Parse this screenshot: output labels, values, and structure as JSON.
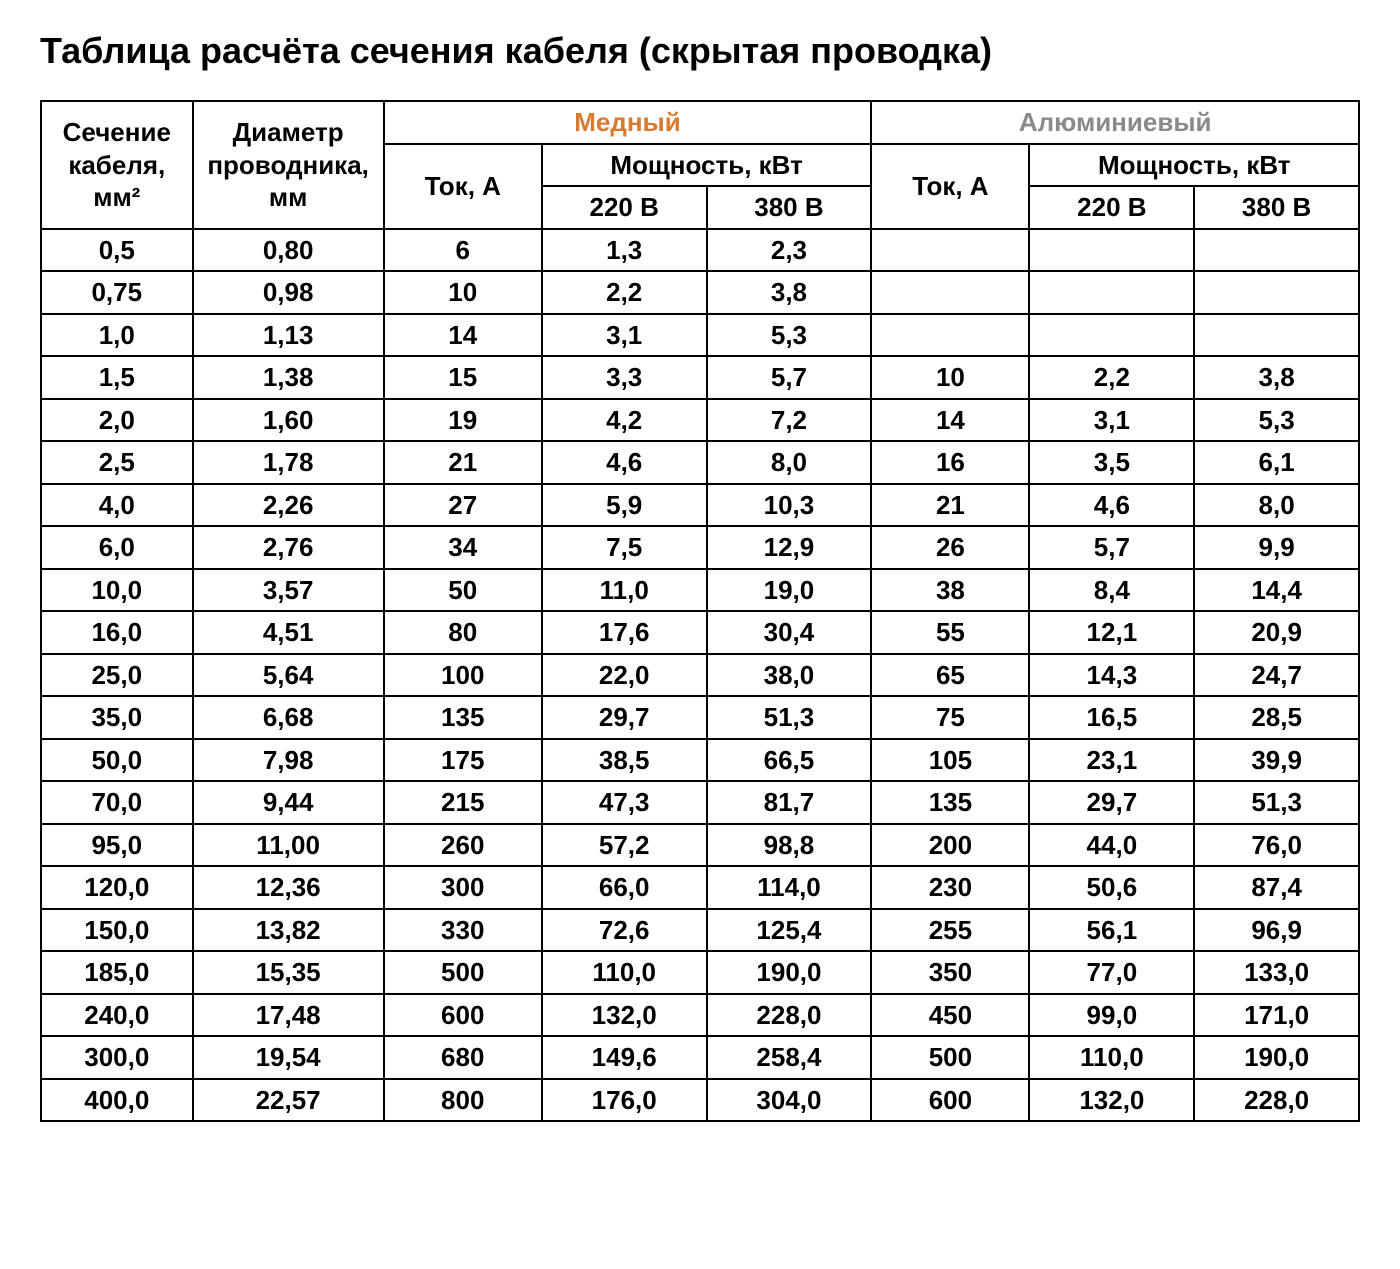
{
  "title": "Таблица расчёта сечения кабеля (скрытая проводка)",
  "headers": {
    "section": "Сечение кабеля, мм²",
    "diameter": "Диаметр проводника, мм",
    "copper": "Медный",
    "aluminum": "Алюминиевый",
    "current": "Ток, А",
    "power": "Мощность, кВт",
    "v220": "220 В",
    "v380": "380 В"
  },
  "colors": {
    "copper": "#d97b2e",
    "aluminum": "#8a8a8a",
    "text": "#000000",
    "border": "#000000",
    "background": "#ffffff"
  },
  "fontsize": {
    "title": 36,
    "header": 26,
    "cell": 26
  },
  "columns": [
    "section",
    "diameter",
    "cu_current",
    "cu_220",
    "cu_380",
    "al_current",
    "al_220",
    "al_380"
  ],
  "rows": [
    [
      "0,5",
      "0,80",
      "6",
      "1,3",
      "2,3",
      "",
      "",
      ""
    ],
    [
      "0,75",
      "0,98",
      "10",
      "2,2",
      "3,8",
      "",
      "",
      ""
    ],
    [
      "1,0",
      "1,13",
      "14",
      "3,1",
      "5,3",
      "",
      "",
      ""
    ],
    [
      "1,5",
      "1,38",
      "15",
      "3,3",
      "5,7",
      "10",
      "2,2",
      "3,8"
    ],
    [
      "2,0",
      "1,60",
      "19",
      "4,2",
      "7,2",
      "14",
      "3,1",
      "5,3"
    ],
    [
      "2,5",
      "1,78",
      "21",
      "4,6",
      "8,0",
      "16",
      "3,5",
      "6,1"
    ],
    [
      "4,0",
      "2,26",
      "27",
      "5,9",
      "10,3",
      "21",
      "4,6",
      "8,0"
    ],
    [
      "6,0",
      "2,76",
      "34",
      "7,5",
      "12,9",
      "26",
      "5,7",
      "9,9"
    ],
    [
      "10,0",
      "3,57",
      "50",
      "11,0",
      "19,0",
      "38",
      "8,4",
      "14,4"
    ],
    [
      "16,0",
      "4,51",
      "80",
      "17,6",
      "30,4",
      "55",
      "12,1",
      "20,9"
    ],
    [
      "25,0",
      "5,64",
      "100",
      "22,0",
      "38,0",
      "65",
      "14,3",
      "24,7"
    ],
    [
      "35,0",
      "6,68",
      "135",
      "29,7",
      "51,3",
      "75",
      "16,5",
      "28,5"
    ],
    [
      "50,0",
      "7,98",
      "175",
      "38,5",
      "66,5",
      "105",
      "23,1",
      "39,9"
    ],
    [
      "70,0",
      "9,44",
      "215",
      "47,3",
      "81,7",
      "135",
      "29,7",
      "51,3"
    ],
    [
      "95,0",
      "11,00",
      "260",
      "57,2",
      "98,8",
      "200",
      "44,0",
      "76,0"
    ],
    [
      "120,0",
      "12,36",
      "300",
      "66,0",
      "114,0",
      "230",
      "50,6",
      "87,4"
    ],
    [
      "150,0",
      "13,82",
      "330",
      "72,6",
      "125,4",
      "255",
      "56,1",
      "96,9"
    ],
    [
      "185,0",
      "15,35",
      "500",
      "110,0",
      "190,0",
      "350",
      "77,0",
      "133,0"
    ],
    [
      "240,0",
      "17,48",
      "600",
      "132,0",
      "228,0",
      "450",
      "99,0",
      "171,0"
    ],
    [
      "300,0",
      "19,54",
      "680",
      "149,6",
      "258,4",
      "500",
      "110,0",
      "190,0"
    ],
    [
      "400,0",
      "22,57",
      "800",
      "176,0",
      "304,0",
      "600",
      "132,0",
      "228,0"
    ]
  ]
}
